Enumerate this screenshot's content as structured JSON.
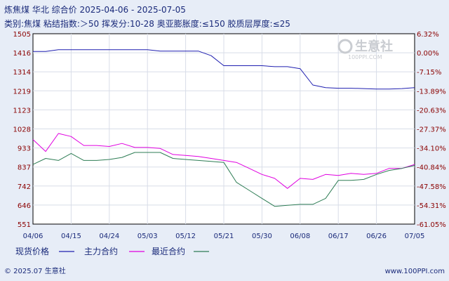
{
  "header": {
    "title": "炼焦煤 华北 综合价  2025-04-06 - 2025-07-05",
    "subtitle": "类别:焦煤 粘结指数:＞50 挥发分:10-28 奥亚膨胀度:≤150 胶质层厚度:≤25"
  },
  "watermark": {
    "logo": "生意社",
    "url": "100PPI.COM"
  },
  "footer": {
    "left": "© 2025.07 生意社",
    "right": "www.100PPI.com"
  },
  "colors": {
    "background": "#e7edf7",
    "plot_bg": "#ffffff",
    "grid": "#d8dde8",
    "axis": "#000000",
    "tick_text": "#8a0000",
    "spot": "#1f1fb0",
    "main": "#e000e0",
    "recent": "#2e7d55"
  },
  "chart_data": {
    "type": "line",
    "x": [
      "04/06",
      "04/09",
      "04/12",
      "04/15",
      "04/18",
      "04/21",
      "04/24",
      "04/27",
      "04/30",
      "05/03",
      "05/06",
      "05/09",
      "05/12",
      "05/15",
      "05/18",
      "05/21",
      "05/24",
      "05/27",
      "05/30",
      "06/02",
      "06/05",
      "06/08",
      "06/11",
      "06/14",
      "06/17",
      "06/20",
      "06/23",
      "06/26",
      "06/29",
      "07/02",
      "07/05"
    ],
    "x_ticks": [
      "04/06",
      "04/15",
      "04/24",
      "05/03",
      "05/12",
      "05/21",
      "05/30",
      "06/08",
      "06/17",
      "06/26",
      "07/05"
    ],
    "y_left_ticks": [
      "1505",
      "1416",
      "1314",
      "1219",
      "1123",
      "1028",
      "933",
      "837",
      "742",
      "646",
      "551"
    ],
    "y_right_ticks": [
      "6.32%",
      "0.00%",
      "-7.15%",
      "-13.89%",
      "-20.63%",
      "-27.37%",
      "-34.10%",
      "-40.84%",
      "-47.58%",
      "-54.31%",
      "-61.05%"
    ],
    "ylim": [
      551,
      1505
    ],
    "series": [
      {
        "name": "现货价格",
        "color": "#1f1fb0",
        "values": [
          1416,
          1416,
          1425,
          1425,
          1425,
          1425,
          1425,
          1425,
          1425,
          1425,
          1418,
          1418,
          1418,
          1418,
          1395,
          1345,
          1345,
          1345,
          1345,
          1340,
          1340,
          1330,
          1248,
          1235,
          1232,
          1232,
          1230,
          1228,
          1228,
          1230,
          1235
        ]
      },
      {
        "name": "主力合约",
        "color": "#e000e0",
        "values": [
          975,
          915,
          1005,
          990,
          945,
          945,
          940,
          955,
          935,
          935,
          930,
          900,
          895,
          890,
          880,
          870,
          860,
          830,
          800,
          780,
          730,
          780,
          775,
          800,
          795,
          805,
          800,
          805,
          830,
          830,
          850
        ]
      },
      {
        "name": "最近合约",
        "color": "#2e7d55",
        "values": [
          850,
          880,
          870,
          905,
          870,
          870,
          875,
          885,
          910,
          910,
          910,
          880,
          875,
          870,
          865,
          860,
          760,
          720,
          680,
          640,
          645,
          650,
          650,
          680,
          770,
          770,
          775,
          800,
          820,
          830,
          845
        ]
      }
    ]
  }
}
